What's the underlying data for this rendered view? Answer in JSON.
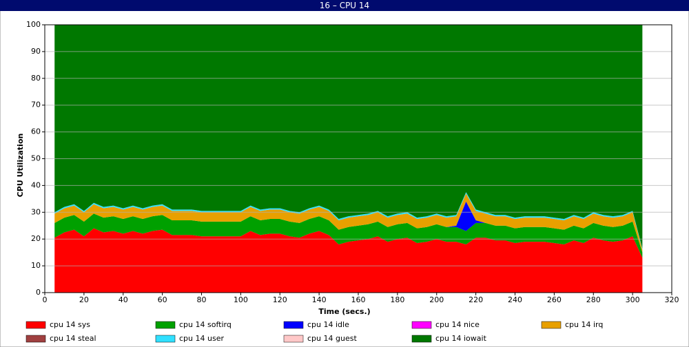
{
  "chart_data": {
    "type": "stacked-area",
    "title": "16 – CPU 14",
    "xlabel": "Time (secs.)",
    "ylabel": "CPU Utilization",
    "x": [
      5,
      10,
      15,
      20,
      25,
      30,
      35,
      40,
      45,
      50,
      55,
      60,
      65,
      70,
      75,
      80,
      85,
      90,
      95,
      100,
      105,
      110,
      115,
      120,
      125,
      130,
      135,
      140,
      145,
      150,
      155,
      160,
      165,
      170,
      175,
      180,
      185,
      190,
      195,
      200,
      205,
      210,
      215,
      220,
      225,
      230,
      235,
      240,
      245,
      250,
      255,
      260,
      265,
      270,
      275,
      280,
      285,
      290,
      295,
      300,
      305
    ],
    "xlim": [
      0,
      320
    ],
    "xticks": [
      0,
      20,
      40,
      60,
      80,
      100,
      120,
      140,
      160,
      180,
      200,
      220,
      240,
      260,
      280,
      300,
      320
    ],
    "ylim": [
      0,
      100
    ],
    "yticks": [
      0,
      10,
      20,
      30,
      40,
      50,
      60,
      70,
      80,
      90,
      100
    ],
    "grid": true,
    "series": [
      {
        "name": "cpu 14 sys",
        "color": "#ff0000",
        "values": [
          20.5,
          22.5,
          23.5,
          21,
          24,
          22.5,
          23,
          22,
          23,
          22,
          23,
          23.5,
          21.5,
          21.5,
          21.5,
          21,
          21,
          21,
          21,
          21,
          23,
          21.5,
          22,
          22,
          21,
          20.5,
          22,
          23,
          21.5,
          18,
          19,
          19.5,
          20,
          21,
          19,
          20,
          20.5,
          18.5,
          19,
          20,
          19,
          19,
          18,
          20.5,
          20.5,
          19.5,
          19.5,
          18.5,
          19,
          19,
          19,
          18.5,
          18,
          19.5,
          18.5,
          20.5,
          19.5,
          19,
          19.5,
          21,
          13
        ]
      },
      {
        "name": "cpu 14 softirq",
        "color": "#00a000",
        "values": [
          5.5,
          5.5,
          5.5,
          5.5,
          5.5,
          5.5,
          5.5,
          5.5,
          5.5,
          5.5,
          5.5,
          5.5,
          5.5,
          5.5,
          5.5,
          5.5,
          5.5,
          5.5,
          5.5,
          5.5,
          5.5,
          5.5,
          5.5,
          5.5,
          5.5,
          5.5,
          5.5,
          5.5,
          5.5,
          5.5,
          5.5,
          5.5,
          5.5,
          5.5,
          5.5,
          5.5,
          5.5,
          5.5,
          5.5,
          5.5,
          5.5,
          5.5,
          5,
          5.5,
          5.5,
          5.5,
          5.5,
          5.5,
          5.5,
          5.5,
          5.5,
          5.5,
          5.5,
          5.5,
          5.5,
          5.5,
          5.5,
          5.5,
          5.5,
          5.5,
          2
        ]
      },
      {
        "name": "cpu 14 idle",
        "color": "#0000ff",
        "values": [
          0,
          0,
          0,
          0,
          0,
          0,
          0,
          0,
          0,
          0,
          0,
          0,
          0,
          0,
          0,
          0,
          0,
          0,
          0,
          0,
          0,
          0,
          0,
          0,
          0,
          0,
          0,
          0,
          0,
          0,
          0,
          0,
          0,
          0,
          0,
          0,
          0,
          0,
          0,
          0,
          0,
          0.5,
          11,
          1,
          0,
          0,
          0,
          0,
          0,
          0,
          0,
          0,
          0,
          0,
          0,
          0,
          0,
          0,
          0,
          0,
          0
        ]
      },
      {
        "name": "cpu 14 nice",
        "color": "#ff00ff",
        "values": [
          0,
          0,
          0,
          0,
          0,
          0,
          0,
          0,
          0,
          0,
          0,
          0,
          0,
          0,
          0,
          0,
          0,
          0,
          0,
          0,
          0,
          0,
          0,
          0,
          0,
          0,
          0,
          0,
          0,
          0,
          0,
          0,
          0,
          0,
          0,
          0,
          0,
          0,
          0,
          0,
          0,
          0,
          0,
          0,
          0,
          0,
          0,
          0,
          0,
          0,
          0,
          0,
          0,
          0,
          0,
          0,
          0,
          0,
          0,
          0,
          0
        ]
      },
      {
        "name": "cpu 14 irq",
        "color": "#e8a000",
        "values": [
          3.5,
          3.5,
          3.5,
          3.5,
          3.5,
          3.5,
          3.5,
          3.5,
          3.5,
          3.5,
          3.5,
          3.5,
          3.5,
          3.5,
          3.5,
          3.5,
          3.5,
          3.5,
          3.5,
          3.5,
          3.5,
          3.5,
          3.5,
          3.5,
          3.5,
          3.5,
          3.5,
          3.5,
          3.5,
          3.5,
          3.5,
          3.5,
          3.5,
          3.5,
          3.5,
          3.5,
          3.5,
          3.5,
          3.5,
          3.5,
          3.5,
          3.5,
          3,
          3.5,
          3.5,
          3.5,
          3.5,
          3.5,
          3.5,
          3.5,
          3.5,
          3.5,
          3.5,
          3.5,
          3.5,
          3.5,
          3.5,
          3.5,
          3.5,
          3.5,
          1
        ]
      },
      {
        "name": "cpu 14 steal",
        "color": "#a04040",
        "values": [
          0,
          0,
          0,
          0,
          0,
          0,
          0,
          0,
          0,
          0,
          0,
          0,
          0,
          0,
          0,
          0,
          0,
          0,
          0,
          0,
          0,
          0,
          0,
          0,
          0,
          0,
          0,
          0,
          0,
          0,
          0,
          0,
          0,
          0,
          0,
          0,
          0,
          0,
          0,
          0,
          0,
          0,
          0,
          0,
          0,
          0,
          0,
          0,
          0,
          0,
          0,
          0,
          0,
          0,
          0,
          0,
          0,
          0,
          0,
          0,
          0
        ]
      },
      {
        "name": "cpu 14 user",
        "color": "#30e0ff",
        "values": [
          0.5,
          0.5,
          0.5,
          0.5,
          0.5,
          0.5,
          0.5,
          0.5,
          0.5,
          0.5,
          0.5,
          0.5,
          0.5,
          0.5,
          0.5,
          0.5,
          0.5,
          0.5,
          0.5,
          0.5,
          0.5,
          0.5,
          0.5,
          0.5,
          0.5,
          0.5,
          0.5,
          0.5,
          0.5,
          0.5,
          0.5,
          0.5,
          0.5,
          0.5,
          0.5,
          0.5,
          0.5,
          0.5,
          0.5,
          0.5,
          0.5,
          0.5,
          0.5,
          0.5,
          0.5,
          0.5,
          0.5,
          0.5,
          0.5,
          0.5,
          0.5,
          0.5,
          0.5,
          0.5,
          0.5,
          0.5,
          0.5,
          0.5,
          0.5,
          0.5,
          0.5
        ]
      },
      {
        "name": "cpu 14 guest",
        "color": "#ffc8c8",
        "values": [
          0,
          0,
          0,
          0,
          0,
          0,
          0,
          0,
          0,
          0,
          0,
          0,
          0,
          0,
          0,
          0,
          0,
          0,
          0,
          0,
          0,
          0,
          0,
          0,
          0,
          0,
          0,
          0,
          0,
          0,
          0,
          0,
          0,
          0,
          0,
          0,
          0,
          0,
          0,
          0,
          0,
          0,
          0,
          0,
          0,
          0,
          0,
          0,
          0,
          0,
          0,
          0,
          0,
          0,
          0,
          0,
          0,
          0,
          0,
          0,
          0
        ]
      },
      {
        "name": "cpu 14 iowait",
        "color": "#007800",
        "values": [
          70,
          68,
          67,
          69.5,
          66.5,
          68,
          67.5,
          68.5,
          67.5,
          68.5,
          67.5,
          67,
          69,
          69,
          69,
          69.5,
          69.5,
          69.5,
          69.5,
          69.5,
          67.5,
          69,
          68.5,
          68.5,
          69.5,
          70,
          68.5,
          67.5,
          69,
          72.5,
          71.5,
          71,
          70.5,
          69.5,
          71.5,
          70.5,
          70,
          72,
          71.5,
          70.5,
          71.5,
          71,
          62.5,
          69,
          70,
          71,
          71,
          72,
          71.5,
          71.5,
          71.5,
          72,
          72.5,
          71,
          72,
          70,
          71,
          71.5,
          71,
          69.5,
          83.5
        ]
      }
    ]
  }
}
